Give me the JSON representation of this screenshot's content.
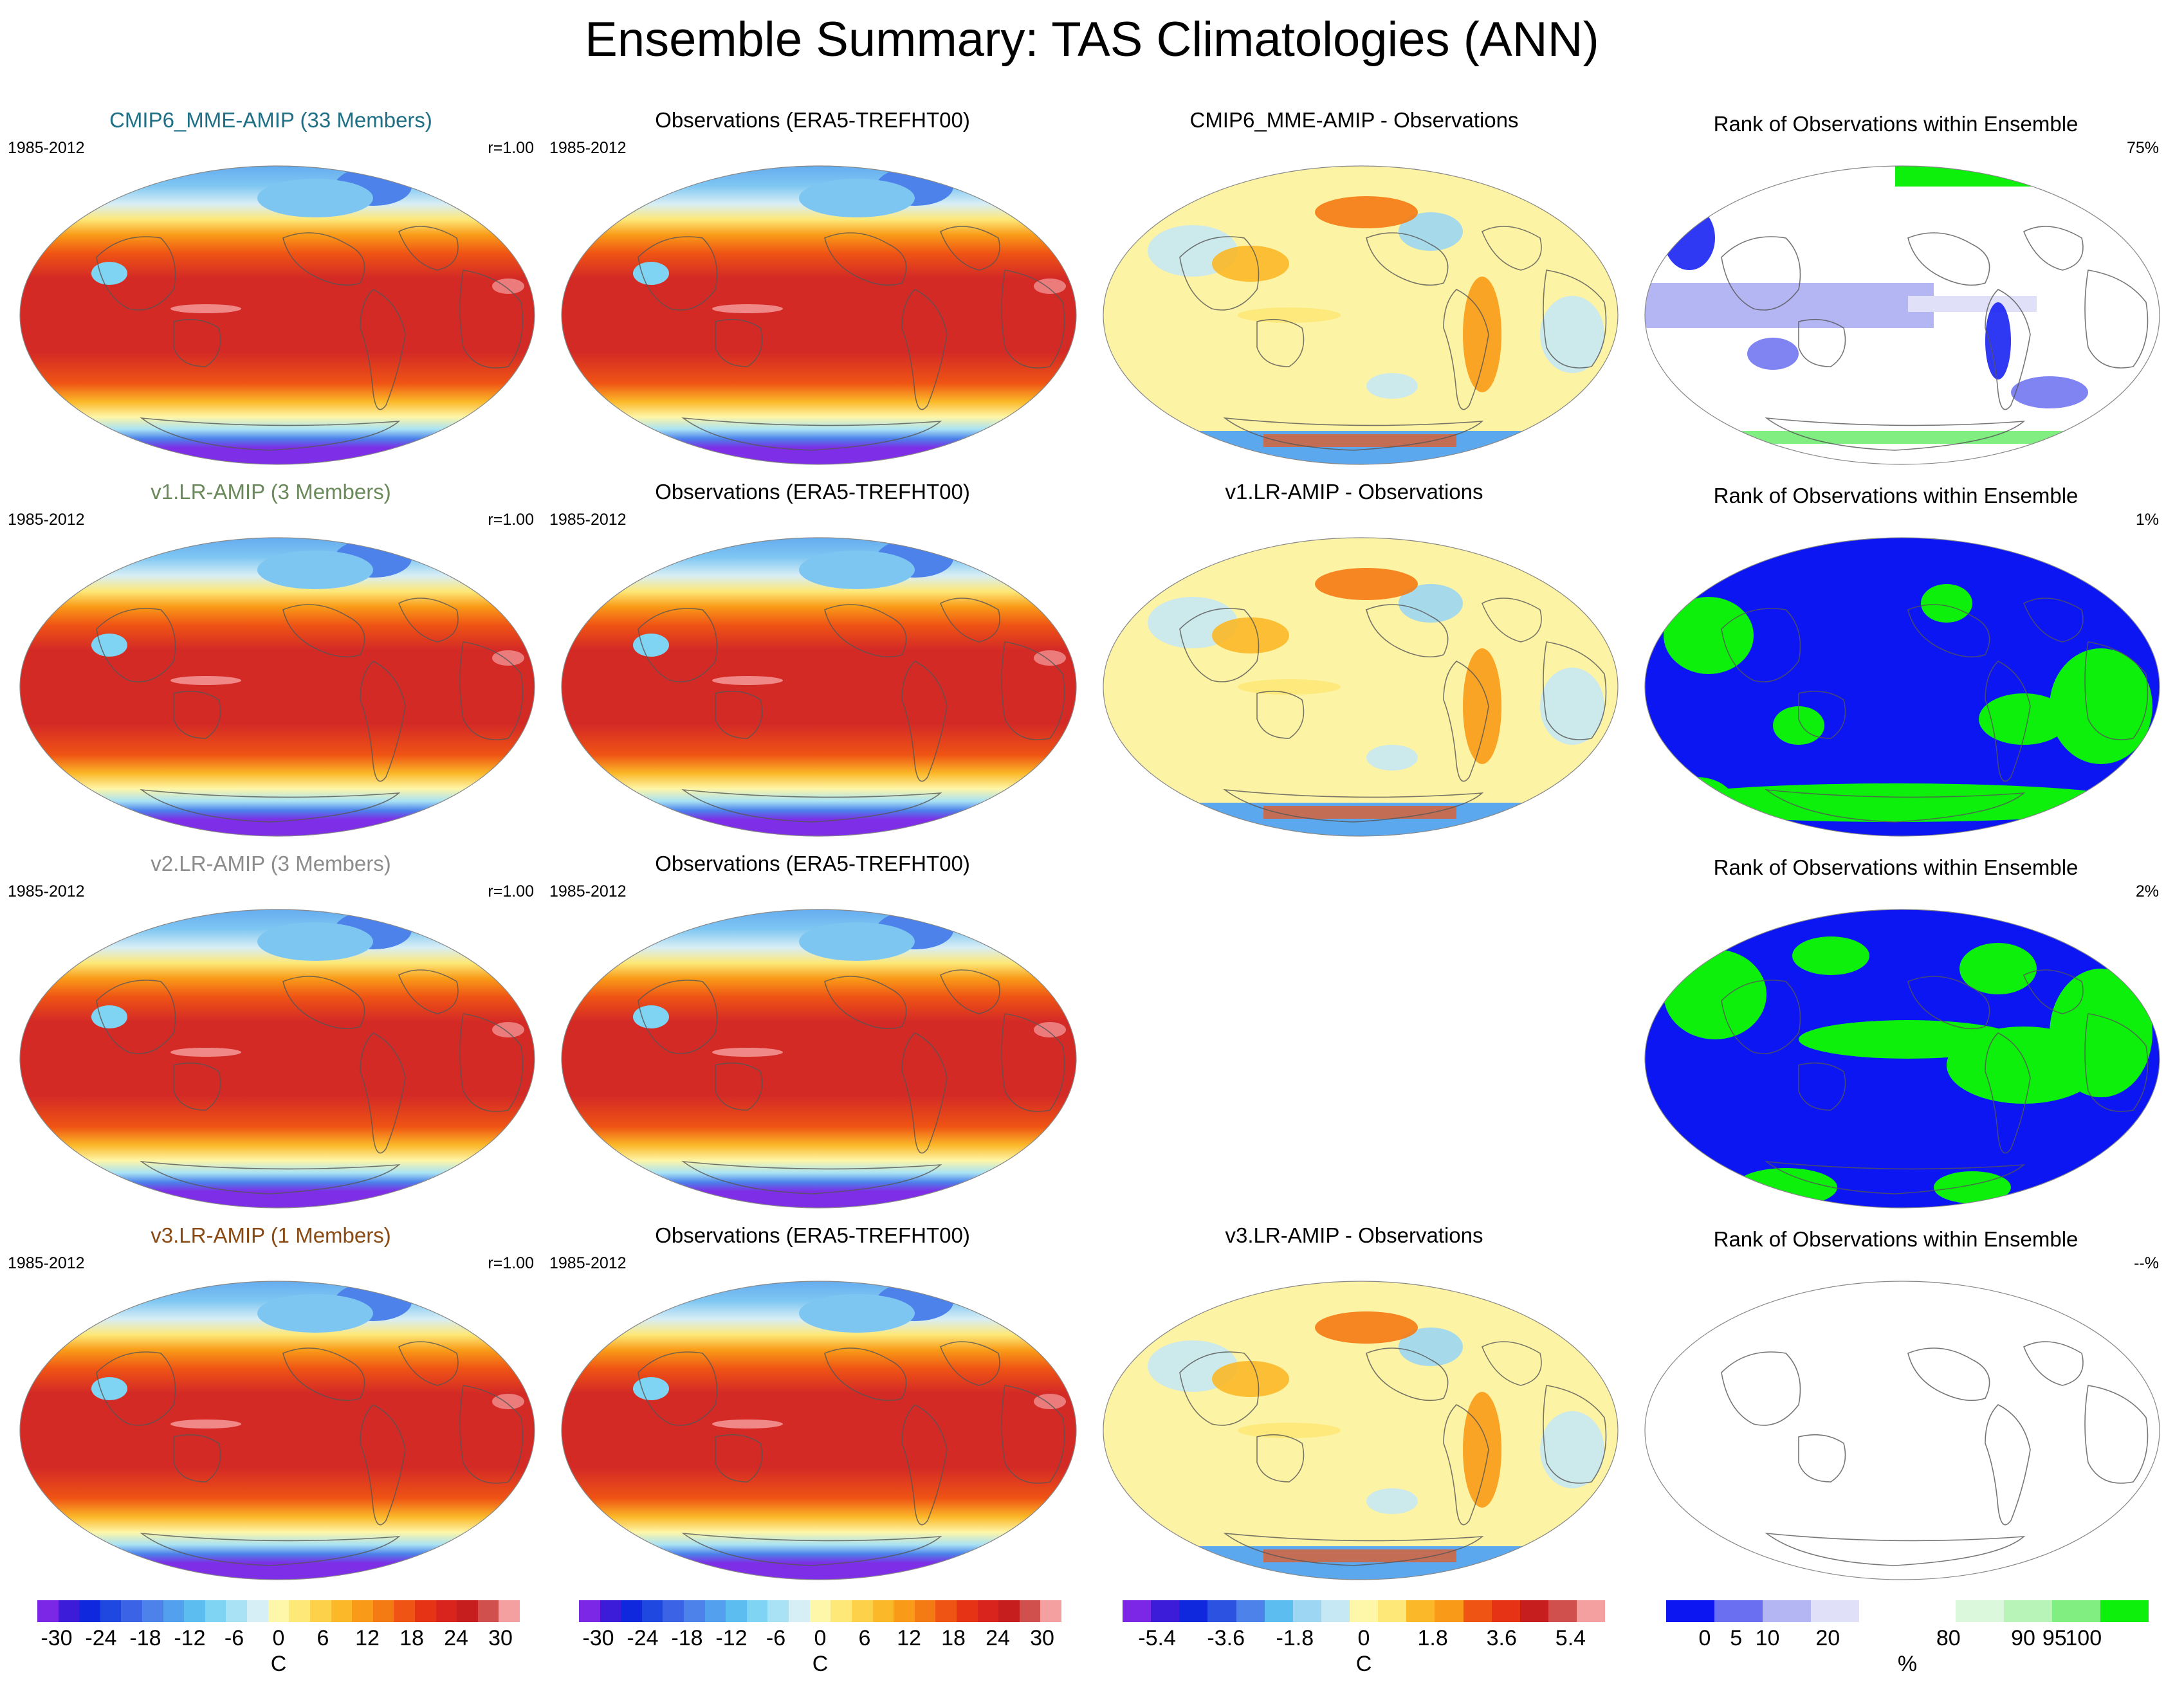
{
  "title": "Ensemble Summary: TAS Climatologies (ANN)",
  "colors": {
    "title_cmip6": "#1f6f86",
    "title_v1": "#6a8a5c",
    "title_v2": "#8c8c8c",
    "title_v3": "#8a4a14",
    "map_ocean_tropics": "#d42a26",
    "map_polar": "#7e2ee6",
    "land_outline": "#555555"
  },
  "panels": {
    "row1": {
      "model": {
        "title": "CMIP6_MME-AMIP (33 Members)",
        "years": "1985-2012",
        "corr": "r=1.00"
      },
      "obs": {
        "title": "Observations (ERA5-TREFHT00)",
        "years": "1985-2012"
      },
      "diff": {
        "title": "CMIP6_MME-AMIP - Observations"
      },
      "rank": {
        "title": "Rank of Observations within Ensemble",
        "pct": "75%"
      }
    },
    "row2": {
      "model": {
        "title": "v1.LR-AMIP (3 Members)",
        "years": "1985-2012",
        "corr": "r=1.00"
      },
      "obs": {
        "title": "Observations (ERA5-TREFHT00)",
        "years": "1985-2012"
      },
      "diff": {
        "title": "v1.LR-AMIP - Observations"
      },
      "rank": {
        "title": "Rank of Observations within Ensemble",
        "pct": "1%"
      }
    },
    "row3": {
      "model": {
        "title": "v2.LR-AMIP (3 Members)",
        "years": "1985-2012",
        "corr": "r=1.00"
      },
      "obs": {
        "title": "Observations (ERA5-TREFHT00)",
        "years": "1985-2012"
      },
      "rank": {
        "title": "Rank of Observations within Ensemble",
        "pct": "2%"
      }
    },
    "row4": {
      "model": {
        "title": "v3.LR-AMIP (1 Members)",
        "years": "1985-2012",
        "corr": "r=1.00"
      },
      "obs": {
        "title": "Observations (ERA5-TREFHT00)",
        "years": "1985-2012"
      },
      "diff": {
        "title": "v3.LR-AMIP - Observations"
      },
      "rank": {
        "title": "Rank of Observations within Ensemble",
        "pct": "--%"
      }
    }
  },
  "chart_data": {
    "type": "heatmap",
    "description_fields": "global maps of annual-mean near-surface air temperature (TAS), Robinson projection",
    "colorbars": [
      {
        "name": "abs",
        "unit": "C",
        "range": [
          -30,
          30
        ],
        "tick_labels": [
          "-30",
          "-24",
          "-18",
          "-12",
          "-6",
          "0",
          "6",
          "12",
          "18",
          "24",
          "30"
        ],
        "colors": [
          "#7c26e6",
          "#3c1cd9",
          "#1028dd",
          "#1f48e0",
          "#3a64e5",
          "#4c82ea",
          "#52a0ee",
          "#5cbef0",
          "#7ed4f2",
          "#a8e2f4",
          "#d6eef6",
          "#fef6a8",
          "#fde878",
          "#fdd24a",
          "#fbb828",
          "#f99b18",
          "#f47a14",
          "#ef5414",
          "#e63316",
          "#d8241c",
          "#c61e1e",
          "#d0504e",
          "#f5a0a0"
        ]
      },
      {
        "name": "abs_obs",
        "unit": "C",
        "range": [
          -30,
          30
        ],
        "tick_labels": [
          "-30",
          "-24",
          "-18",
          "-12",
          "-6",
          "0",
          "6",
          "12",
          "18",
          "24",
          "30"
        ],
        "colors": [
          "#7c26e6",
          "#3c1cd9",
          "#1028dd",
          "#1f48e0",
          "#3a64e5",
          "#4c82ea",
          "#52a0ee",
          "#5cbef0",
          "#7ed4f2",
          "#a8e2f4",
          "#d6eef6",
          "#fef6a8",
          "#fde878",
          "#fdd24a",
          "#fbb828",
          "#f99b18",
          "#f47a14",
          "#ef5414",
          "#e63316",
          "#d8241c",
          "#c61e1e",
          "#d0504e",
          "#f5a0a0"
        ]
      },
      {
        "name": "diff",
        "unit": "C",
        "range": [
          -6.3,
          6.3
        ],
        "tick_labels": [
          "-5.4",
          "-3.6",
          "-1.8",
          "0",
          "1.8",
          "3.6",
          "5.4"
        ],
        "colors": [
          "#7c26e6",
          "#3c1cd9",
          "#1028dd",
          "#2c52e2",
          "#4c82ea",
          "#5cbef0",
          "#9cd6f2",
          "#c6e8f4",
          "#fef6a8",
          "#fde878",
          "#fbb828",
          "#f99b18",
          "#ef5414",
          "#e63316",
          "#c61e1e",
          "#d0504e",
          "#f5a0a0"
        ]
      },
      {
        "name": "rank",
        "unit": "%",
        "range": [
          0,
          100
        ],
        "tick_labels": [
          "0",
          "5",
          "10",
          "20",
          "80",
          "90",
          "95",
          "100"
        ],
        "colors": [
          "#0b16f2",
          "#6a6ef0",
          "#b4b6f4",
          "#e0e0f8",
          "#ffffff",
          "#ffffff",
          "#dcf8dc",
          "#b8f4b8",
          "#80ee80",
          "#0cf00c"
        ]
      }
    ],
    "panel_grid": {
      "rows": [
        "CMIP6_MME-AMIP",
        "v1.LR-AMIP",
        "v2.LR-AMIP",
        "v3.LR-AMIP"
      ],
      "columns": [
        "model climatology",
        "observations",
        "model - observations",
        "rank of observations"
      ],
      "rank_summary_pct": [
        "75%",
        "1%",
        "2%",
        "--%"
      ],
      "pattern_correlation": [
        "r=1.00",
        "r=1.00",
        "r=1.00",
        "r=1.00"
      ]
    }
  }
}
